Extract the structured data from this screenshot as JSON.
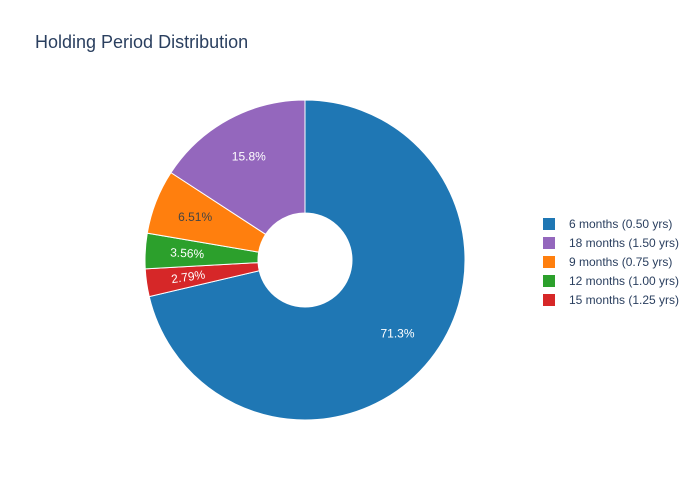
{
  "chart_data": {
    "type": "pie",
    "title": "Holding Period Distribution",
    "hole": true,
    "legend_position": "right",
    "slices": [
      {
        "label": "6 months (0.50 yrs)",
        "value": 71.3,
        "text": "71.3%",
        "color": "#1f77b4",
        "text_color": "#ffffff"
      },
      {
        "label": "15 months (1.25 yrs)",
        "value": 2.79,
        "text": "2.79%",
        "color": "#d62728",
        "text_color": "#ffffff"
      },
      {
        "label": "12 months (1.00 yrs)",
        "value": 3.56,
        "text": "3.56%",
        "color": "#2ca02c",
        "text_color": "#ffffff"
      },
      {
        "label": "9 months (0.75 yrs)",
        "value": 6.51,
        "text": "6.51%",
        "color": "#ff7f0e",
        "text_color": "#444444"
      },
      {
        "label": "18 months (1.50 yrs)",
        "value": 15.8,
        "text": "15.8%",
        "color": "#9467bd",
        "text_color": "#ffffff"
      }
    ],
    "legend": [
      {
        "label": "6 months (0.50 yrs)",
        "color": "#1f77b4"
      },
      {
        "label": "18 months (1.50 yrs)",
        "color": "#9467bd"
      },
      {
        "label": "9 months (0.75 yrs)",
        "color": "#ff7f0e"
      },
      {
        "label": "12 months (1.00 yrs)",
        "color": "#2ca02c"
      },
      {
        "label": "15 months (1.25 yrs)",
        "color": "#d62728"
      }
    ]
  }
}
